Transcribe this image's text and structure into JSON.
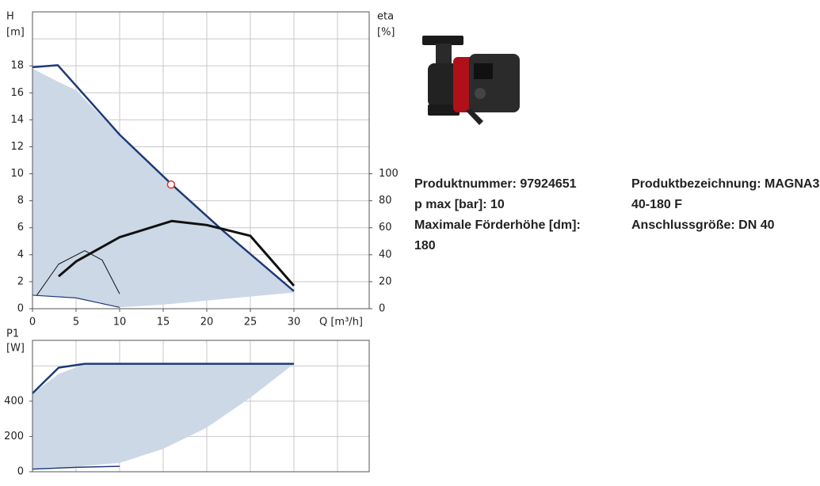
{
  "chart_data": [
    {
      "type": "line",
      "ylabel": "H",
      "yunit": "[m]",
      "y2label": "eta",
      "y2unit": "[%]",
      "xlabel": "Q [m³/h]",
      "xlim": [
        0,
        38.64
      ],
      "ylim": [
        0,
        22
      ],
      "y2lim": [
        0,
        220
      ],
      "xticks": [
        0,
        5,
        10,
        15,
        20,
        25,
        30
      ],
      "xgrid": [
        0,
        5,
        10,
        15,
        20,
        25,
        30,
        35
      ],
      "yticks": [
        0,
        2,
        4,
        6,
        8,
        10,
        12,
        14,
        16,
        18
      ],
      "ygrid": [
        0,
        2,
        4,
        6,
        8,
        10,
        12,
        14,
        16,
        18,
        20
      ],
      "y2ticks": [
        0,
        20,
        40,
        60,
        80,
        100
      ],
      "grid": true,
      "series": [
        {
          "kind": "area",
          "color": "#ccd8e6",
          "x": [
            0,
            3,
            5,
            8,
            10,
            16,
            22,
            30,
            30,
            25,
            20,
            15,
            10,
            5,
            0
          ],
          "values": [
            17.8,
            16.8,
            16.2,
            14.2,
            12.8,
            9.2,
            5.7,
            1.3,
            1.2,
            0.9,
            0.6,
            0.3,
            0.1,
            0.8,
            1.0
          ]
        },
        {
          "kind": "line",
          "color": "#1f3a78",
          "width": 2.5,
          "x": [
            0,
            2.9,
            10,
            16,
            22,
            30
          ],
          "values": [
            17.9,
            18.05,
            12.9,
            9.2,
            5.7,
            1.3
          ]
        },
        {
          "kind": "line",
          "color": "#1f3a78",
          "width": 1.2,
          "x": [
            0,
            5,
            10
          ],
          "values": [
            1.0,
            0.8,
            0.1
          ]
        },
        {
          "kind": "line",
          "color": "#111111",
          "width": 3,
          "axis": "y2",
          "x": [
            3,
            5,
            10,
            16,
            20,
            25,
            30
          ],
          "values": [
            24,
            35,
            53,
            65,
            62,
            54,
            17
          ]
        },
        {
          "kind": "line",
          "color": "#111111",
          "width": 1,
          "axis": "y2",
          "x": [
            0.5,
            3,
            6,
            8,
            10
          ],
          "values": [
            10,
            33,
            43,
            36,
            11
          ]
        },
        {
          "kind": "marker",
          "color": "#e03030",
          "x": [
            15.9
          ],
          "values": [
            9.2
          ]
        }
      ]
    },
    {
      "type": "line",
      "ylabel": "P1",
      "yunit": "[W]",
      "xlim": [
        0,
        38.64
      ],
      "ylim": [
        0,
        745
      ],
      "xgrid": [
        0,
        5,
        10,
        15,
        20,
        25,
        30,
        35
      ],
      "yticks": [
        0,
        200,
        400
      ],
      "ygrid": [
        0,
        200,
        400,
        600
      ],
      "grid": true,
      "series": [
        {
          "kind": "area",
          "color": "#ccd8e6",
          "x": [
            0,
            1,
            3,
            6,
            30,
            25,
            20,
            15,
            10,
            5,
            0
          ],
          "values": [
            445,
            480,
            555,
            610,
            612,
            420,
            250,
            130,
            50,
            30,
            20
          ]
        },
        {
          "kind": "line",
          "color": "#1f3a78",
          "width": 2.5,
          "x": [
            0,
            3,
            6,
            30
          ],
          "values": [
            445,
            590,
            612,
            612
          ]
        },
        {
          "kind": "line",
          "color": "#1f3a78",
          "width": 1.5,
          "x": [
            0,
            5,
            10
          ],
          "values": [
            15,
            25,
            31
          ]
        }
      ]
    }
  ],
  "product": {
    "left": [
      {
        "label": "Produktnummer:",
        "value": "97924651"
      },
      {
        "label": "p max [bar]:",
        "value": "10"
      },
      {
        "label": "Maximale Förderhöhe [dm]:",
        "value": "180"
      }
    ],
    "right": [
      {
        "label": "Produktbezeichnung:",
        "value": "MAGNA3 40-180 F"
      },
      {
        "label": "Anschlussgröße:",
        "value": "DN 40"
      }
    ]
  }
}
